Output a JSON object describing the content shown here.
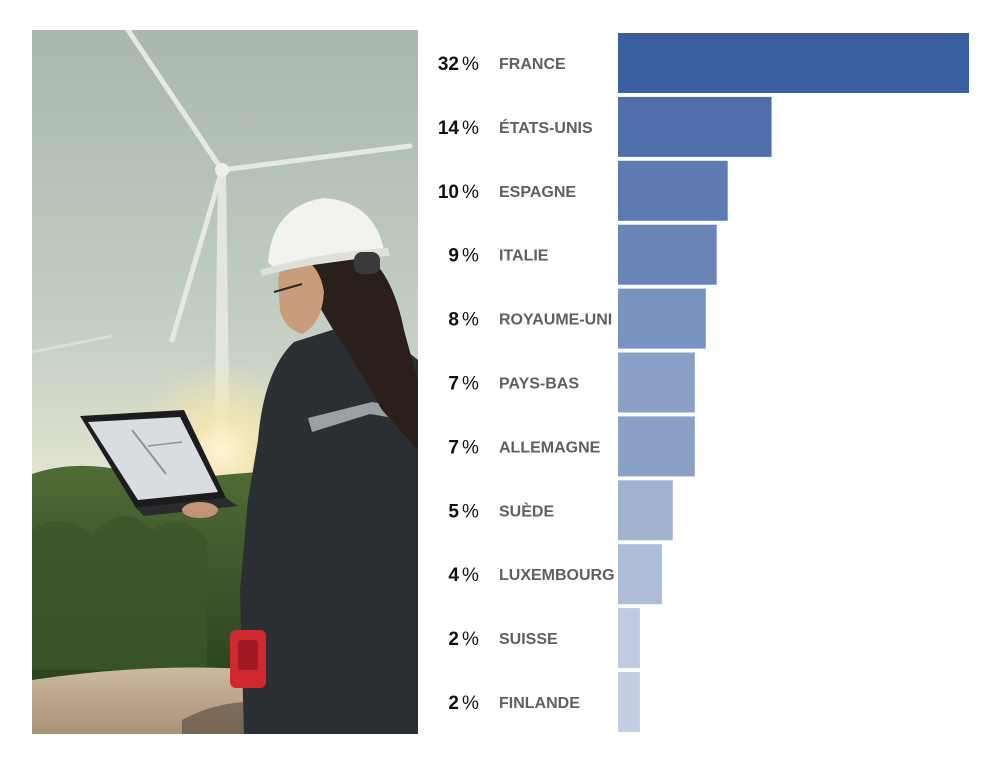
{
  "chart_data": {
    "type": "bar",
    "orientation": "horizontal",
    "unit": "%",
    "categories": [
      "FRANCE",
      "ÉTATS-UNIS",
      "ESPAGNE",
      "ITALIE",
      "ROYAUME-UNI",
      "PAYS-BAS",
      "ALLEMAGNE",
      "SUÈDE",
      "LUXEMBOURG",
      "SUISSE",
      "FINLANDE"
    ],
    "values": [
      32,
      14,
      10,
      9,
      8,
      7,
      7,
      5,
      4,
      2,
      2
    ],
    "colors": [
      "#3a5f9f",
      "#4e6fa9",
      "#5d7bb0",
      "#6b86b6",
      "#7a93be",
      "#8ba0c6",
      "#8ba0c6",
      "#a1b2d0",
      "#aebdd7",
      "#c0cbe1",
      "#c4cee3"
    ],
    "title": "",
    "xlabel": "",
    "ylabel": "",
    "grid": false,
    "legend": "none"
  },
  "photo": {
    "icon": "wind-turbine-engineer-photo"
  }
}
